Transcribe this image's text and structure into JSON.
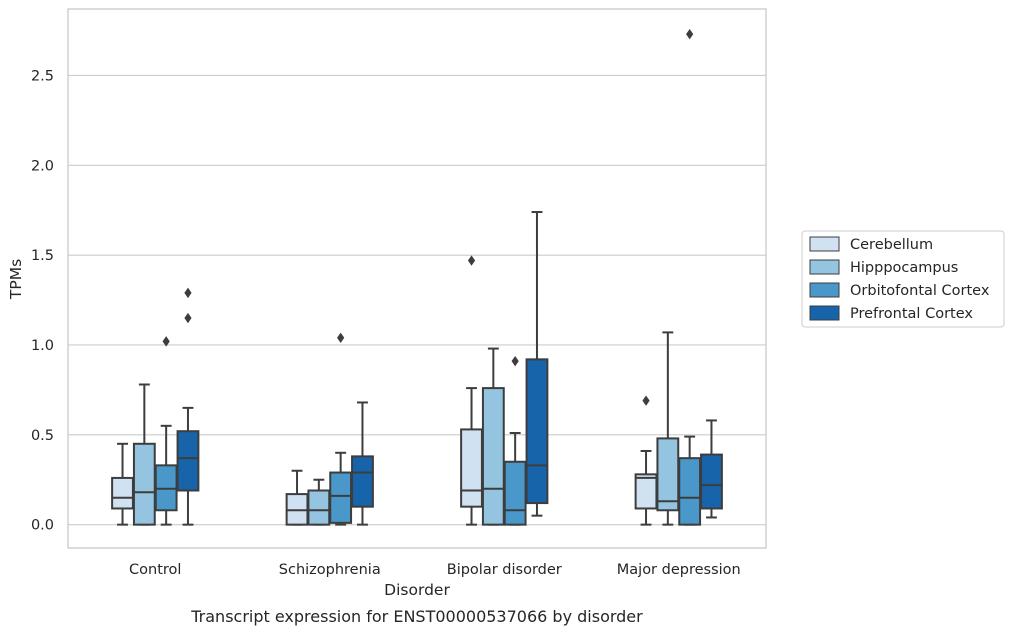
{
  "caption": "Transcript expression for ENST00000537066 by disorder",
  "colors": {
    "grid": "#cccccc",
    "frame": "#c8c8c8",
    "box_edge": "#3d3d3d",
    "Cerebellum": "#d0e1f2",
    "Hipppocampus": "#94c4df",
    "Orbitofontal Cortex": "#4a98c9",
    "Prefrontal Cortex": "#1764ab"
  },
  "chart_data": {
    "type": "box",
    "title": "",
    "xlabel": "Disorder",
    "ylabel": "TPMs",
    "ylim": [
      -0.13,
      2.87
    ],
    "yticks": [
      0.0,
      0.5,
      1.0,
      1.5,
      2.0,
      2.5
    ],
    "ytick_labels": [
      "0.0",
      "0.5",
      "1.0",
      "1.5",
      "2.0",
      "2.5"
    ],
    "grid": "horizontal",
    "legend_position": "right-outside",
    "categories": [
      "Control",
      "Schizophrenia",
      "Bipolar disorder",
      "Major depression"
    ],
    "series": [
      {
        "name": "Cerebellum",
        "boxes": [
          {
            "whisker_low": 0.0,
            "q1": 0.09,
            "median": 0.15,
            "q3": 0.26,
            "whisker_high": 0.45,
            "outliers": []
          },
          {
            "whisker_low": 0.0,
            "q1": 0.0,
            "median": 0.08,
            "q3": 0.17,
            "whisker_high": 0.3,
            "outliers": []
          },
          {
            "whisker_low": 0.0,
            "q1": 0.1,
            "median": 0.19,
            "q3": 0.53,
            "whisker_high": 0.76,
            "outliers": [
              1.47
            ]
          },
          {
            "whisker_low": 0.0,
            "q1": 0.09,
            "median": 0.26,
            "q3": 0.28,
            "whisker_high": 0.41,
            "outliers": [
              0.69
            ]
          }
        ]
      },
      {
        "name": "Hipppocampus",
        "boxes": [
          {
            "whisker_low": 0.0,
            "q1": 0.0,
            "median": 0.18,
            "q3": 0.45,
            "whisker_high": 0.78,
            "outliers": []
          },
          {
            "whisker_low": 0.0,
            "q1": 0.0,
            "median": 0.08,
            "q3": 0.19,
            "whisker_high": 0.25,
            "outliers": []
          },
          {
            "whisker_low": 0.0,
            "q1": 0.0,
            "median": 0.2,
            "q3": 0.76,
            "whisker_high": 0.98,
            "outliers": []
          },
          {
            "whisker_low": 0.0,
            "q1": 0.08,
            "median": 0.13,
            "q3": 0.48,
            "whisker_high": 1.07,
            "outliers": []
          }
        ]
      },
      {
        "name": "Orbitofontal Cortex",
        "boxes": [
          {
            "whisker_low": 0.0,
            "q1": 0.08,
            "median": 0.2,
            "q3": 0.33,
            "whisker_high": 0.55,
            "outliers": [
              1.02
            ]
          },
          {
            "whisker_low": 0.0,
            "q1": 0.01,
            "median": 0.16,
            "q3": 0.29,
            "whisker_high": 0.4,
            "outliers": [
              1.04
            ]
          },
          {
            "whisker_low": 0.0,
            "q1": 0.0,
            "median": 0.08,
            "q3": 0.35,
            "whisker_high": 0.51,
            "outliers": [
              0.91
            ]
          },
          {
            "whisker_low": 0.0,
            "q1": 0.0,
            "median": 0.15,
            "q3": 0.37,
            "whisker_high": 0.49,
            "outliers": [
              2.73
            ]
          }
        ]
      },
      {
        "name": "Prefrontal Cortex",
        "boxes": [
          {
            "whisker_low": 0.0,
            "q1": 0.19,
            "median": 0.37,
            "q3": 0.52,
            "whisker_high": 0.65,
            "outliers": [
              1.15,
              1.29
            ]
          },
          {
            "whisker_low": 0.0,
            "q1": 0.1,
            "median": 0.29,
            "q3": 0.38,
            "whisker_high": 0.68,
            "outliers": []
          },
          {
            "whisker_low": 0.05,
            "q1": 0.12,
            "median": 0.33,
            "q3": 0.92,
            "whisker_high": 1.74,
            "outliers": []
          },
          {
            "whisker_low": 0.04,
            "q1": 0.09,
            "median": 0.22,
            "q3": 0.39,
            "whisker_high": 0.58,
            "outliers": []
          }
        ]
      }
    ]
  }
}
